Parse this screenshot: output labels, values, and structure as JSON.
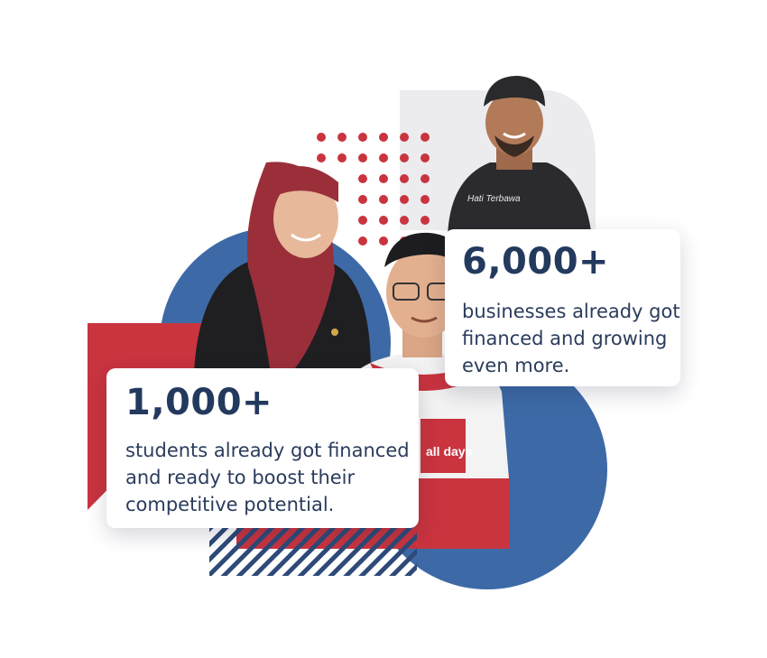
{
  "colors": {
    "brand_navy": "#3d6aa6",
    "brand_red": "#c9343f",
    "text_navy": "#233a5e",
    "light_gray": "#ececef"
  },
  "stats": {
    "businesses": {
      "number": "6,000+",
      "line1": "businesses already got",
      "line2": "financed and growing",
      "line3": "even more."
    },
    "students": {
      "number": "1,000+",
      "line1": "students already got financed",
      "line2": "and ready to boost their",
      "line3": "competitive potential."
    }
  },
  "photos": {
    "shirt_print_man": "Hati Terbawa",
    "shirt_print_center": "all days"
  }
}
